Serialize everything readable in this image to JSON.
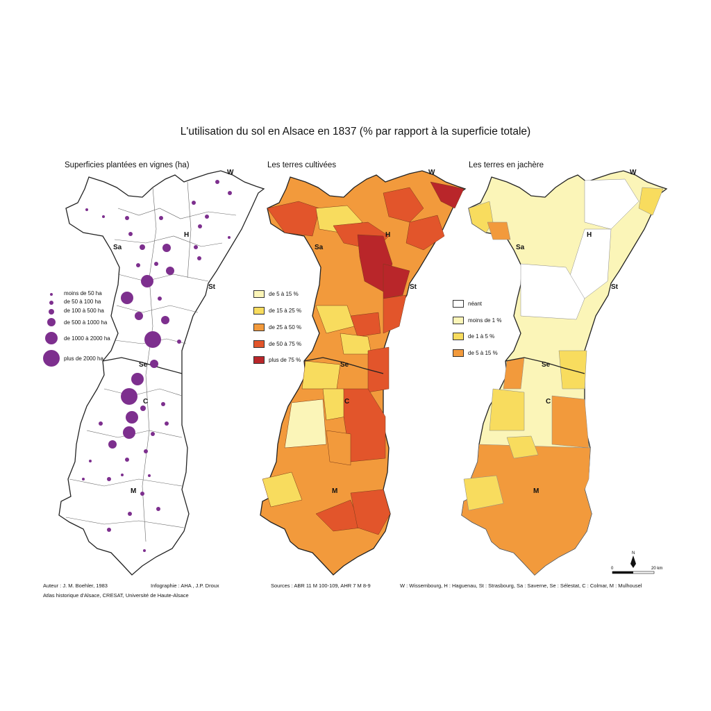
{
  "title": "L'utilisation du sol en Alsace en 1837 (% par rapport à la superficie totale)",
  "panels": {
    "vignes": {
      "subtitle": "Superficies plantées en vignes (ha)",
      "legend": [
        {
          "label": "moins de 50 ha",
          "size_class": 1
        },
        {
          "label": "de 50 à 100 ha",
          "size_class": 2
        },
        {
          "label": "de 100 à 500 ha",
          "size_class": 3
        },
        {
          "label": "de 500 à 1000 ha",
          "size_class": 4
        },
        {
          "label": "de 1000 à 2000 ha",
          "size_class": 5
        },
        {
          "label": "plus de 2000 ha",
          "size_class": 6
        }
      ],
      "symbol_color": "#7d2f8e"
    },
    "cultivees": {
      "subtitle": "Les terres cultivées",
      "legend": [
        {
          "label": "de 5 à 15 %",
          "color": "#fbf5b8"
        },
        {
          "label": "de 15 à 25 %",
          "color": "#f8dc5e"
        },
        {
          "label": "de 25 à 50 %",
          "color": "#f29a3c"
        },
        {
          "label": "de 50 à 75 %",
          "color": "#e2552b"
        },
        {
          "label": "plus de 75 %",
          "color": "#b9262a"
        }
      ]
    },
    "jachere": {
      "subtitle": "Les terres en jachère",
      "legend": [
        {
          "label": "néant",
          "color": "#ffffff"
        },
        {
          "label": "moins de 1 %",
          "color": "#fbf5b8"
        },
        {
          "label": "de 1 à 5 %",
          "color": "#f8dc5e"
        },
        {
          "label": "de 5 à 15 %",
          "color": "#f29a3c"
        }
      ]
    }
  },
  "cities": {
    "W": "W",
    "H": "H",
    "Sa": "Sa",
    "St": "St",
    "Se": "Se",
    "C": "C",
    "M": "M"
  },
  "scale": {
    "north": "N",
    "start": "0",
    "end": "20 km"
  },
  "credits": {
    "author": "Auteur : J. M. Boehler, 1983",
    "infographie": "Infographie : AHA , J.P. Droux",
    "atlas": "Atlas historique d'Alsace, CRESAT, Université de Haute-Alsace",
    "sources": "Sources : ABR 11 M 100-109, AHR 7 M 8-9",
    "abbreviations": "W : Wissembourg, H : Haguenau, St : Strasbourg, Sa : Saverne, Se : Sélestat, C : Colmar, M : Mulhousel"
  },
  "colors": {
    "purple": "#7d2f8e",
    "pale": "#fbf5b8",
    "yellow": "#f8dc5e",
    "orange": "#f29a3c",
    "redorange": "#e2552b",
    "darkred": "#b9262a"
  }
}
